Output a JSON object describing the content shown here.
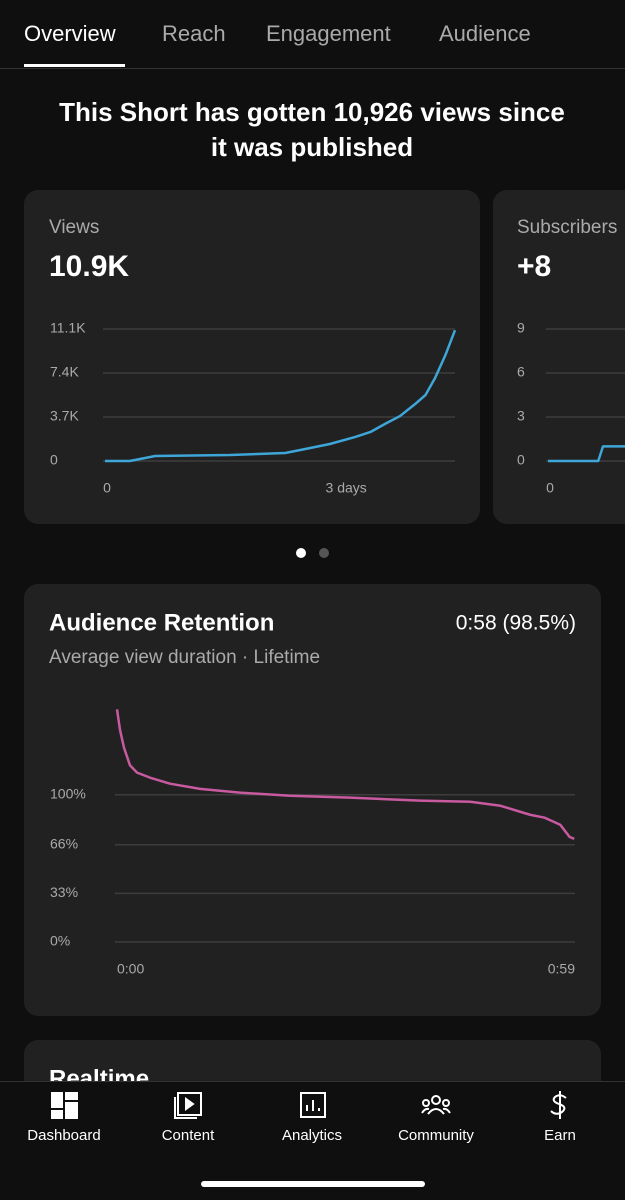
{
  "tabs": [
    "Overview",
    "Reach",
    "Engagement",
    "Audience"
  ],
  "headline": [
    "This Short has gotten 10,926 views since",
    "it was published"
  ],
  "cards": [
    {
      "label": "Views",
      "value": "10.9K",
      "chart": {
        "type": "line",
        "color": "#3ea6d8",
        "x": [
          0,
          0.31,
          0.44,
          0.63,
          1.57,
          2.26,
          2.45,
          2.82,
          3.14,
          3.33,
          3.51,
          3.7,
          3.89,
          4.02,
          4.14,
          4.27,
          4.39
        ],
        "values": [
          0,
          0,
          170,
          420,
          500,
          670,
          925,
          1430,
          2020,
          2440,
          3110,
          3780,
          4790,
          5550,
          6980,
          8910,
          11000
        ],
        "xlim": [
          0,
          4.39
        ],
        "ylim": [
          0,
          11100
        ],
        "xticks": [
          0,
          {
            "value": 3,
            "label": "3 days"
          }
        ],
        "yticks": [
          0,
          {
            "value": 3700,
            "label": "3.7K"
          },
          {
            "value": 7400,
            "label": "7.4K"
          },
          {
            "value": 11100,
            "label": "11.1K"
          }
        ]
      }
    },
    {
      "label": "Subscribers",
      "value": "+8",
      "chart": {
        "type": "line",
        "color": "#3ea6d8",
        "x": [
          0,
          0.63,
          0.69,
          1.0
        ],
        "values": [
          0,
          0,
          1,
          1
        ],
        "xlim": [
          0,
          4.39
        ],
        "ylim": [
          0,
          9
        ],
        "xticks": [
          0
        ],
        "yticks": [
          0,
          3,
          6,
          9
        ]
      }
    }
  ],
  "retention": {
    "title": "Audience Retention",
    "value": "0:58 (98.5%)",
    "subtitle": "Average view duration · Lifetime",
    "chart": {
      "type": "line",
      "color": "#c85aa0",
      "x": [
        0,
        0.39,
        0.9,
        1.67,
        2.58,
        4.25,
        6.83,
        10.7,
        15.8,
        22.3,
        30,
        39,
        45.5,
        49.4,
        53.2,
        55.1,
        57.1,
        58.3,
        58.9
      ],
      "values": [
        158,
        144,
        132,
        120,
        115,
        111.6,
        107.5,
        104,
        101.4,
        99.3,
        98,
        96,
        95.2,
        92.5,
        86.4,
        84.4,
        79.6,
        71.4,
        70
      ],
      "xlim": [
        0,
        59
      ],
      "ylim": [
        0,
        165
      ],
      "xticks": [
        {
          "value": 0,
          "label": "0:00"
        },
        {
          "value": 59,
          "label": "0:59"
        }
      ],
      "yticks": [
        {
          "value": 0,
          "label": "0%"
        },
        {
          "value": 33,
          "label": "33%"
        },
        {
          "value": 66,
          "label": "66%"
        },
        {
          "value": 100,
          "label": "100%"
        }
      ]
    }
  },
  "realtime": {
    "title": "Realtime"
  },
  "nav": [
    "Dashboard",
    "Content",
    "Analytics",
    "Community",
    "Earn"
  ]
}
